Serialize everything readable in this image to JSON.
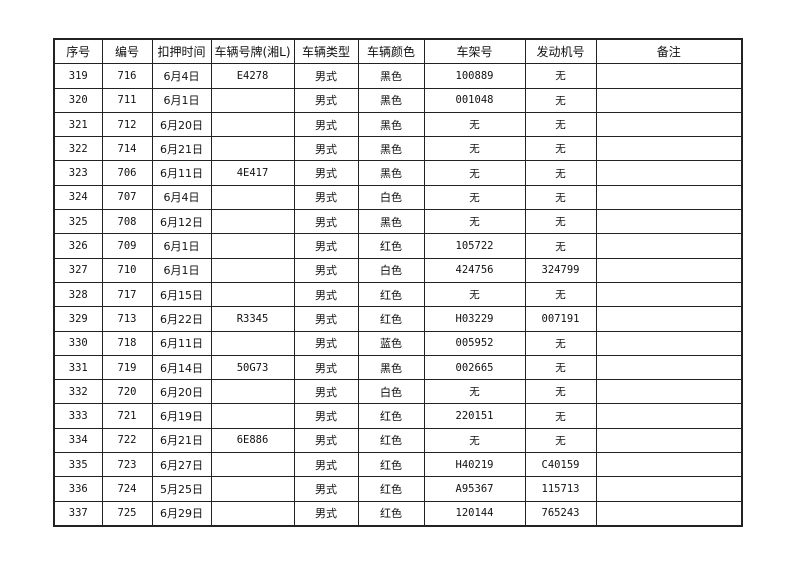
{
  "table": {
    "headers": [
      "序号",
      "编号",
      "扣押时间",
      "车辆号牌(湘L)",
      "车辆类型",
      "车辆颜色",
      "车架号",
      "发动机号",
      "备注"
    ],
    "rows": [
      [
        "319",
        "716",
        "6月4日",
        "E4278",
        "男式",
        "黑色",
        "100889",
        "无",
        ""
      ],
      [
        "320",
        "711",
        "6月1日",
        "",
        "男式",
        "黑色",
        "001048",
        "无",
        ""
      ],
      [
        "321",
        "712",
        "6月20日",
        "",
        "男式",
        "黑色",
        "无",
        "无",
        ""
      ],
      [
        "322",
        "714",
        "6月21日",
        "",
        "男式",
        "黑色",
        "无",
        "无",
        ""
      ],
      [
        "323",
        "706",
        "6月11日",
        "4E417",
        "男式",
        "黑色",
        "无",
        "无",
        ""
      ],
      [
        "324",
        "707",
        "6月4日",
        "",
        "男式",
        "白色",
        "无",
        "无",
        ""
      ],
      [
        "325",
        "708",
        "6月12日",
        "",
        "男式",
        "黑色",
        "无",
        "无",
        ""
      ],
      [
        "326",
        "709",
        "6月1日",
        "",
        "男式",
        "红色",
        "105722",
        "无",
        ""
      ],
      [
        "327",
        "710",
        "6月1日",
        "",
        "男式",
        "白色",
        "424756",
        "324799",
        ""
      ],
      [
        "328",
        "717",
        "6月15日",
        "",
        "男式",
        "红色",
        "无",
        "无",
        ""
      ],
      [
        "329",
        "713",
        "6月22日",
        "R3345",
        "男式",
        "红色",
        "H03229",
        "007191",
        ""
      ],
      [
        "330",
        "718",
        "6月11日",
        "",
        "男式",
        "蓝色",
        "005952",
        "无",
        ""
      ],
      [
        "331",
        "719",
        "6月14日",
        "50G73",
        "男式",
        "黑色",
        "002665",
        "无",
        ""
      ],
      [
        "332",
        "720",
        "6月20日",
        "",
        "男式",
        "白色",
        "无",
        "无",
        ""
      ],
      [
        "333",
        "721",
        "6月19日",
        "",
        "男式",
        "红色",
        "220151",
        "无",
        ""
      ],
      [
        "334",
        "722",
        "6月21日",
        "6E886",
        "男式",
        "红色",
        "无",
        "无",
        ""
      ],
      [
        "335",
        "723",
        "6月27日",
        "",
        "男式",
        "红色",
        "H40219",
        "C40159",
        ""
      ],
      [
        "336",
        "724",
        "5月25日",
        "",
        "男式",
        "红色",
        "A95367",
        "115713",
        ""
      ],
      [
        "337",
        "725",
        "6月29日",
        "",
        "男式",
        "红色",
        "120144",
        "765243",
        ""
      ]
    ]
  }
}
